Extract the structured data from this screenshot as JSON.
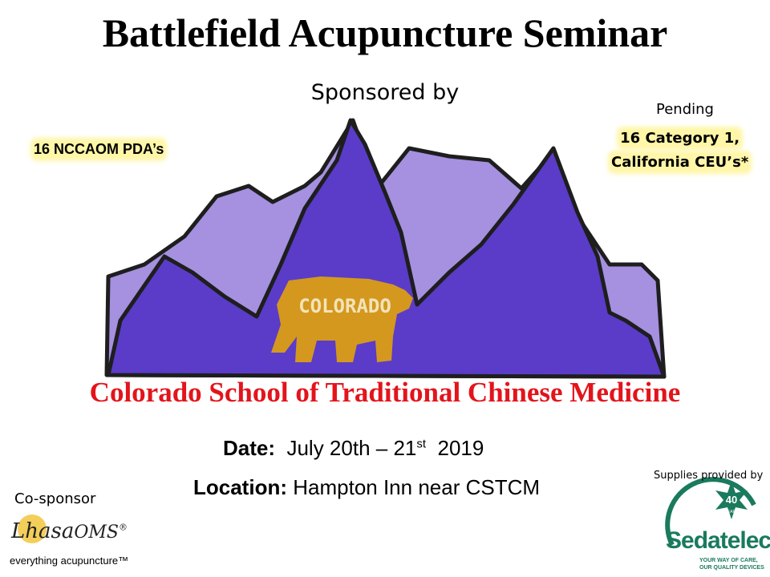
{
  "header": {
    "title": "Battlefield Acupuncture Seminar",
    "sponsored_by": "Sponsored by"
  },
  "badges": {
    "left": "16 NCCAOM PDA’s",
    "pending": "Pending",
    "right": [
      "16 Category 1,",
      "California CEU’s*"
    ]
  },
  "logo": {
    "bear_text": "COLORADO"
  },
  "school": "Colorado School of Traditional Chinese Medicine",
  "details": {
    "date_label": "Date:",
    "date_value": "July 20th – 21",
    "date_suffix": "st",
    "date_year": "2019",
    "location_label": "Location:",
    "location_value": "Hampton Inn near CSTCM"
  },
  "cosponsor": {
    "label": "Co-sponsor",
    "brand": "Lhasa",
    "brand2": "OMS",
    "reg": "®",
    "tagline": "everything acupuncture™"
  },
  "supplier": {
    "label": "Supplies provided by",
    "badge_number": "40",
    "badge_text": "YEARS",
    "brand": "Sedatelec",
    "tagline_1": "YOUR WAY OF CARE,",
    "tagline_2": "OUR QUALITY DEVICES"
  }
}
